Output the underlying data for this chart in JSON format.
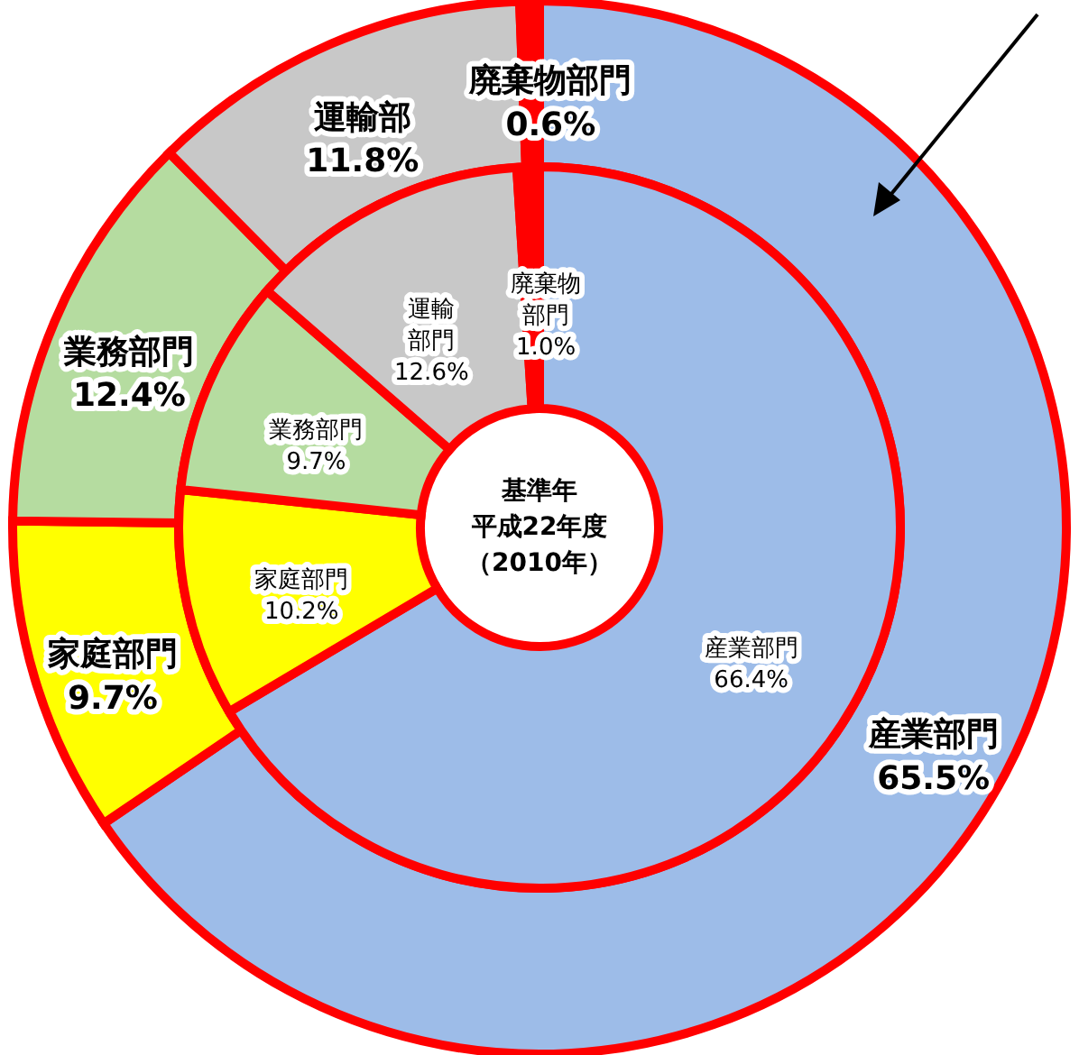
{
  "chart_data": [
    {
      "type": "donut",
      "categories": [
        "産業部門",
        "家庭部門",
        "業務部門",
        "運輸部",
        "廃棄物部門"
      ],
      "values": [
        65.5,
        9.7,
        12.4,
        11.8,
        0.6
      ],
      "colors": [
        "#9dbce8",
        "#ffff00",
        "#b5dca0",
        "#c8c8c8",
        "#ff0000"
      ],
      "value_labels": [
        "65.5%",
        "9.7%",
        "12.4%",
        "11.8%",
        "0.6%"
      ]
    },
    {
      "type": "donut",
      "categories": [
        "産業部門",
        "家庭部門",
        "業務部門",
        "運輸部門",
        "廃棄物部門"
      ],
      "values": [
        66.4,
        10.2,
        9.7,
        12.6,
        1.0
      ],
      "colors": [
        "#9dbce8",
        "#ffff00",
        "#b5dca0",
        "#c8c8c8",
        "#ff0000"
      ],
      "value_labels": [
        "66.4%",
        "10.2%",
        "9.7%",
        "12.6%",
        "1.0%"
      ],
      "annotations": [
        "基準年",
        "平成22年度",
        "（2010年）"
      ]
    }
  ]
}
